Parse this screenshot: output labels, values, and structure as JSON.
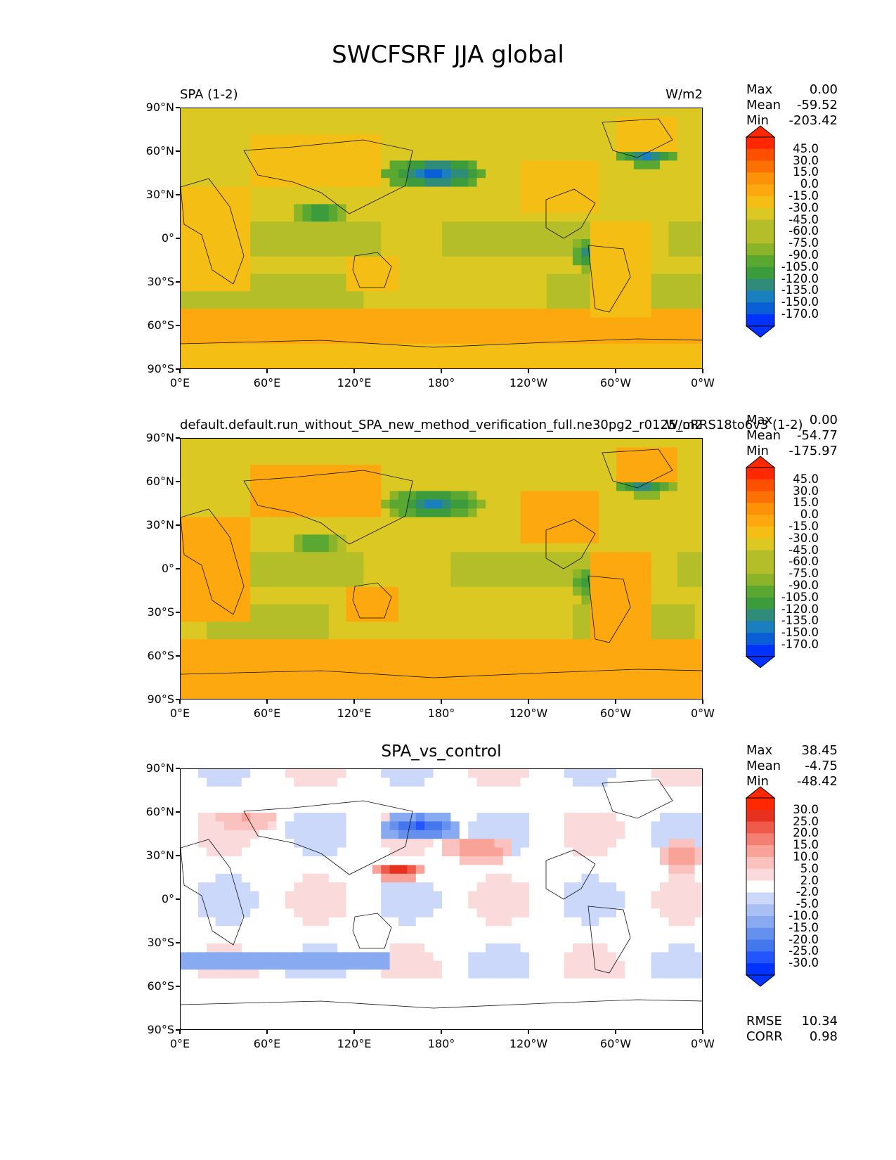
{
  "figure_title": "SWCFSRF JJA global",
  "x_tick_labels": [
    "0°E",
    "60°E",
    "120°E",
    "180°",
    "120°W",
    "60°W",
    "0°W"
  ],
  "y_tick_labels": [
    "90°N",
    "60°N",
    "30°N",
    "0°",
    "30°S",
    "60°S",
    "90°S"
  ],
  "colors": {
    "abs_scale": [
      "#0033ff",
      "#0a5fd6",
      "#1a7fbf",
      "#2e8c78",
      "#3c9c3c",
      "#5aa832",
      "#8cb428",
      "#b4be28",
      "#dcc822",
      "#f5be14",
      "#fca80e",
      "#fc9208",
      "#fc7004",
      "#fc5000",
      "#ff2800"
    ],
    "diff_scale": [
      "#0033ff",
      "#2255ff",
      "#4477ee",
      "#6690ee",
      "#88aaf0",
      "#aac0f5",
      "#ccd8fa",
      "#ffffff",
      "#fadada",
      "#fac2be",
      "#f8a298",
      "#f48074",
      "#f05a4a",
      "#e8301e",
      "#ff2800"
    ]
  },
  "chart_data": [
    {
      "type": "heatmap",
      "title_left": "SPA (1-2)",
      "title_right": "W/m2",
      "stats": {
        "max_label": "Max",
        "max": "0.00",
        "mean_label": "Mean",
        "mean": "-59.52",
        "min_label": "Min",
        "min": "-203.42"
      },
      "colorbar_levels": [
        "45.0",
        "30.0",
        "15.0",
        "0.0",
        "-15.0",
        "-30.0",
        "-45.0",
        "-60.0",
        "-75.0",
        "-90.0",
        "-105.0",
        "-120.0",
        "-135.0",
        "-150.0",
        "-170.0"
      ],
      "xlim": [
        0,
        360
      ],
      "ylim": [
        -90,
        90
      ]
    },
    {
      "type": "heatmap",
      "title_left": "default.default.run_without_SPA_new_method_verification_full.ne30pg2_r0125_oRRS18to6v3 (1-2)",
      "title_right": "W/m2",
      "stats": {
        "max_label": "Max",
        "max": "0.00",
        "mean_label": "Mean",
        "mean": "-54.77",
        "min_label": "Min",
        "min": "-175.97"
      },
      "colorbar_levels": [
        "45.0",
        "30.0",
        "15.0",
        "0.0",
        "-15.0",
        "-30.0",
        "-45.0",
        "-60.0",
        "-75.0",
        "-90.0",
        "-105.0",
        "-120.0",
        "-135.0",
        "-150.0",
        "-170.0"
      ],
      "xlim": [
        0,
        360
      ],
      "ylim": [
        -90,
        90
      ]
    },
    {
      "type": "heatmap",
      "title_center": "SPA_vs_control",
      "stats": {
        "max_label": "Max",
        "max": "38.45",
        "mean_label": "Mean",
        "mean": "-4.75",
        "min_label": "Min",
        "min": "-48.42"
      },
      "colorbar_levels": [
        "30.0",
        "25.0",
        "20.0",
        "15.0",
        "10.0",
        "5.0",
        "2.0",
        "-2.0",
        "-5.0",
        "-10.0",
        "-15.0",
        "-20.0",
        "-25.0",
        "-30.0"
      ],
      "metrics": {
        "rmse_label": "RMSE",
        "rmse": "10.34",
        "corr_label": "CORR",
        "corr": "0.98"
      },
      "xlim": [
        0,
        360
      ],
      "ylim": [
        -90,
        90
      ]
    }
  ]
}
